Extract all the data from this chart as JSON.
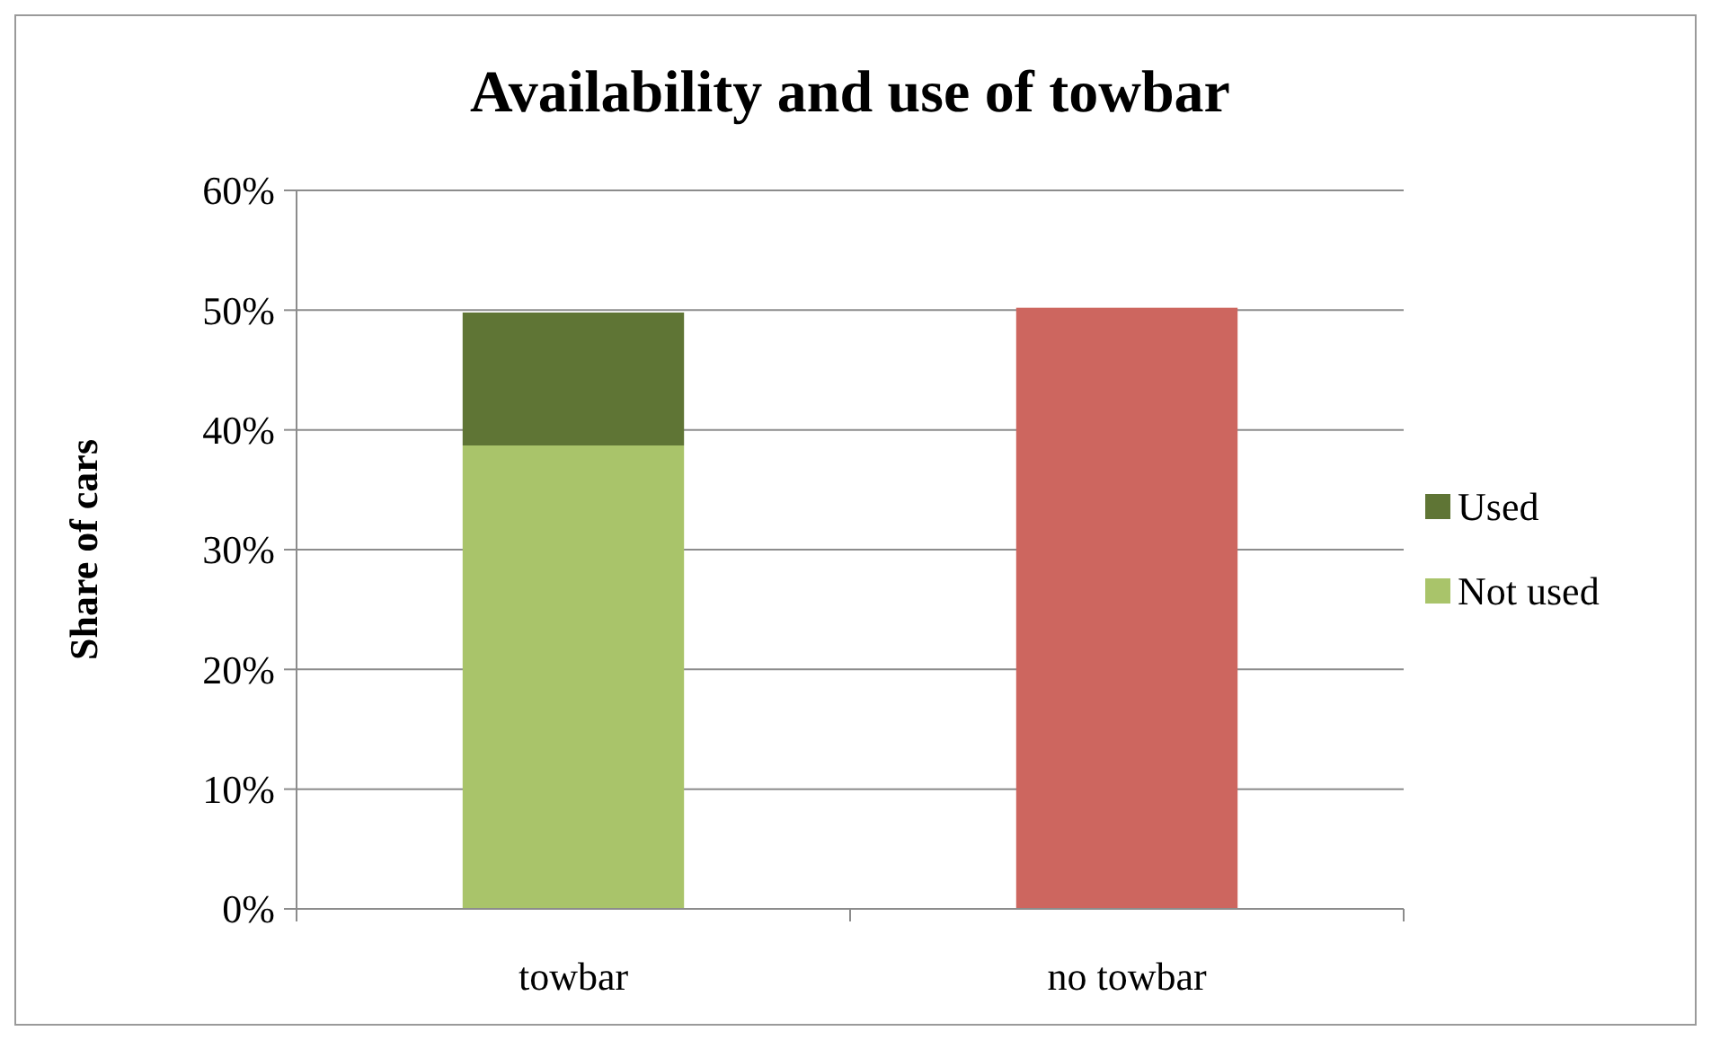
{
  "chart_data": {
    "type": "bar",
    "title": "Availability and use of towbar",
    "ylabel": "Share of cars",
    "categories": [
      "towbar",
      "no towbar"
    ],
    "stacked": true,
    "series": [
      {
        "name": "Not used",
        "color": "#a9c46a",
        "values": [
          38.7,
          null
        ]
      },
      {
        "name": "Used",
        "color": "#5f7535",
        "values": [
          11.1,
          null
        ]
      },
      {
        "color": "#cd665f",
        "values": [
          null,
          50.2
        ]
      }
    ],
    "ylim": [
      0,
      60
    ],
    "yticks": [
      {
        "value": 0,
        "label": "0%"
      },
      {
        "value": 10,
        "label": "10%"
      },
      {
        "value": 20,
        "label": "20%"
      },
      {
        "value": 30,
        "label": "30%"
      },
      {
        "value": 40,
        "label": "40%"
      },
      {
        "value": 50,
        "label": "50%"
      },
      {
        "value": 60,
        "label": "60%"
      }
    ],
    "grid": "y",
    "legend": "right"
  }
}
